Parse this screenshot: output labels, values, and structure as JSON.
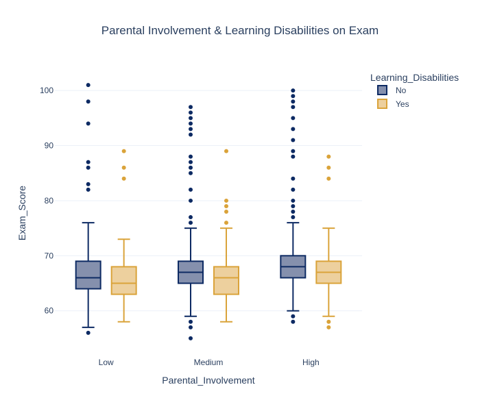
{
  "chart_data": {
    "type": "box",
    "title": "Parental Involvement & Learning Disabilities on Exam",
    "xlabel": "Parental_Involvement",
    "ylabel": "Exam_Score",
    "categories": [
      "Low",
      "Medium",
      "High"
    ],
    "ylim": [
      53,
      104
    ],
    "yticks": [
      60,
      70,
      80,
      90,
      100
    ],
    "grid": true,
    "legend": {
      "title": "Learning_Disabilities",
      "position": "top-right"
    },
    "series": [
      {
        "name": "No",
        "line_color": "#0d2a63",
        "fill_color": "#8590ad",
        "boxes": [
          {
            "category": "Low",
            "lowerfence": 57,
            "q1": 64,
            "median": 66,
            "q3": 69,
            "upperfence": 76,
            "outliers": [
              56,
              82,
              83,
              86,
              87,
              94,
              98,
              101
            ]
          },
          {
            "category": "Medium",
            "lowerfence": 59,
            "q1": 65,
            "median": 67,
            "q3": 69,
            "upperfence": 75,
            "outliers": [
              55,
              57,
              58,
              76,
              77,
              80,
              82,
              85,
              86,
              87,
              88,
              92,
              93,
              94,
              95,
              96,
              97
            ]
          },
          {
            "category": "High",
            "lowerfence": 60,
            "q1": 66,
            "median": 68,
            "q3": 70,
            "upperfence": 76,
            "outliers": [
              58,
              59,
              77,
              78,
              79,
              80,
              82,
              84,
              88,
              89,
              91,
              93,
              95,
              97,
              98,
              99,
              100
            ]
          }
        ]
      },
      {
        "name": "Yes",
        "line_color": "#daa33a",
        "fill_color": "#edd09e",
        "boxes": [
          {
            "category": "Low",
            "lowerfence": 58,
            "q1": 63,
            "median": 65,
            "q3": 68,
            "upperfence": 73,
            "outliers": [
              84,
              86,
              89
            ]
          },
          {
            "category": "Medium",
            "lowerfence": 58,
            "q1": 63,
            "median": 66,
            "q3": 68,
            "upperfence": 75,
            "outliers": [
              76,
              78,
              79,
              80,
              89
            ]
          },
          {
            "category": "High",
            "lowerfence": 59,
            "q1": 65,
            "median": 67,
            "q3": 69,
            "upperfence": 75,
            "outliers": [
              57,
              58,
              84,
              86,
              88
            ]
          }
        ]
      }
    ]
  }
}
